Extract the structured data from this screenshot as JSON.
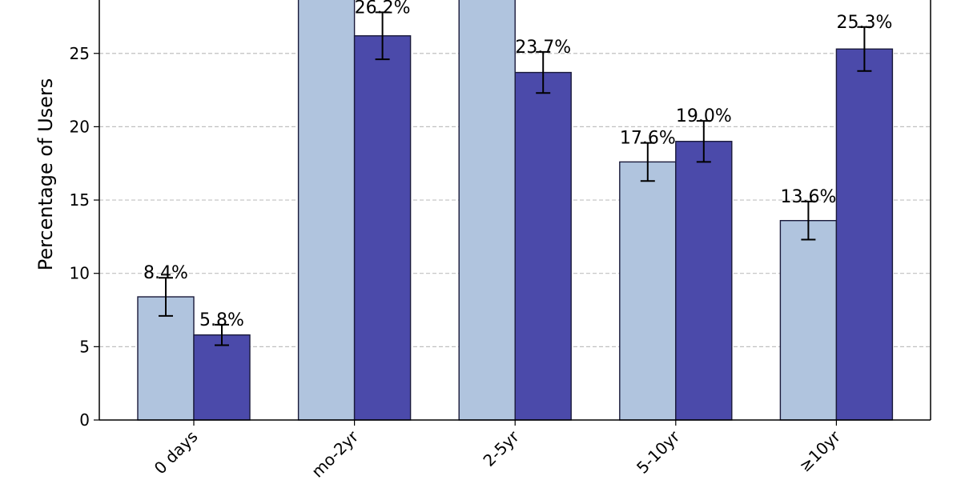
{
  "chart_data": {
    "type": "bar",
    "title": "",
    "xlabel": "",
    "ylabel": "Percentage of Users",
    "ylim": [
      0,
      29
    ],
    "yticks": [
      0,
      5,
      10,
      15,
      20,
      25
    ],
    "grid": "y-dashed",
    "categories": [
      "<30 days",
      "1mo-2yr",
      "2-5yr",
      "5-10yr",
      "≥10yr"
    ],
    "category_labels_visible": [
      "0 days",
      "mo-2yr",
      "2-5yr",
      "5-10yr",
      "≥10yr"
    ],
    "series": [
      {
        "name": "Series A",
        "color": "#b0c4de",
        "values": [
          8.4,
          30.5,
          30.6,
          17.6,
          13.6
        ],
        "errors": [
          1.3,
          1.5,
          1.4,
          1.3,
          1.3
        ],
        "labels": [
          "8.4%",
          "",
          "",
          "17.6%",
          "13.6%"
        ]
      },
      {
        "name": "Series B",
        "color": "#4b4aaa",
        "values": [
          5.8,
          26.2,
          23.7,
          19.0,
          25.3
        ],
        "errors": [
          0.7,
          1.6,
          1.4,
          1.4,
          1.5
        ],
        "labels": [
          "5.8%",
          "26.2%",
          "23.7%",
          "19.0%",
          "25.3%"
        ]
      }
    ]
  }
}
